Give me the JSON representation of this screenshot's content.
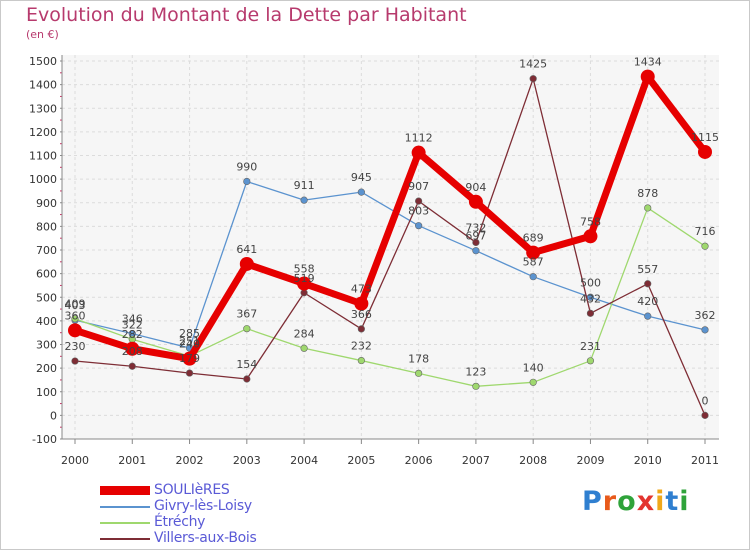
{
  "title": "Evolution du Montant de la Dette par Habitant",
  "subtitle": "(en €)",
  "logo": {
    "text": "Proxiti",
    "letter_colors": [
      "#2f7fd0",
      "#e85a1b",
      "#2fa33a",
      "#e3342f",
      "#f0a81a",
      "#2f7fd0",
      "#2fa33a"
    ]
  },
  "chart_data": {
    "type": "line",
    "x": [
      "2000",
      "2001",
      "2002",
      "2003",
      "2004",
      "2005",
      "2006",
      "2007",
      "2008",
      "2009",
      "2010",
      "2011"
    ],
    "ylim": [
      -100,
      1500
    ],
    "yticks": [
      "-100",
      "0",
      "100",
      "200",
      "300",
      "400",
      "500",
      "600",
      "700",
      "800",
      "900",
      "1000",
      "1100",
      "1200",
      "1300",
      "1400",
      "1500"
    ],
    "grid": true,
    "legend_position": "bottom-left",
    "series": [
      {
        "name": "SOULIèRES",
        "color": "#e60000",
        "values": [
          360,
          282,
          240,
          641,
          558,
          473,
          1112,
          904,
          689,
          758,
          1434,
          1115
        ],
        "labels": [
          "360",
          "282",
          "240",
          "641",
          "558",
          "473",
          "1112",
          "904",
          "689",
          "758",
          "1434",
          "1115"
        ]
      },
      {
        "name": "Givry-lès-Loisy",
        "color": "#5b93cf",
        "values": [
          403,
          346,
          285,
          990,
          911,
          945,
          803,
          697,
          587,
          500,
          420,
          362
        ],
        "labels": [
          "403",
          "346",
          "285",
          "990",
          "911",
          "945",
          "803",
          "697",
          "587",
          "500",
          "420",
          "362"
        ]
      },
      {
        "name": "Étréchy",
        "color": "#9fd86e",
        "values": [
          409,
          322,
          251,
          367,
          284,
          232,
          178,
          123,
          140,
          231,
          878,
          716
        ],
        "labels": [
          "409",
          "322",
          "251",
          "367",
          "284",
          "232",
          "178",
          "123",
          "140",
          "231",
          "878",
          "716"
        ]
      },
      {
        "name": "Villers-aux-Bois",
        "color": "#7e2d35",
        "values": [
          230,
          208,
          179,
          154,
          519,
          366,
          907,
          732,
          1425,
          432,
          557,
          0
        ],
        "labels": [
          "230",
          "208",
          "179",
          "154",
          "519",
          "366",
          "907",
          "732",
          "1425",
          "432",
          "557",
          "0"
        ]
      }
    ]
  }
}
